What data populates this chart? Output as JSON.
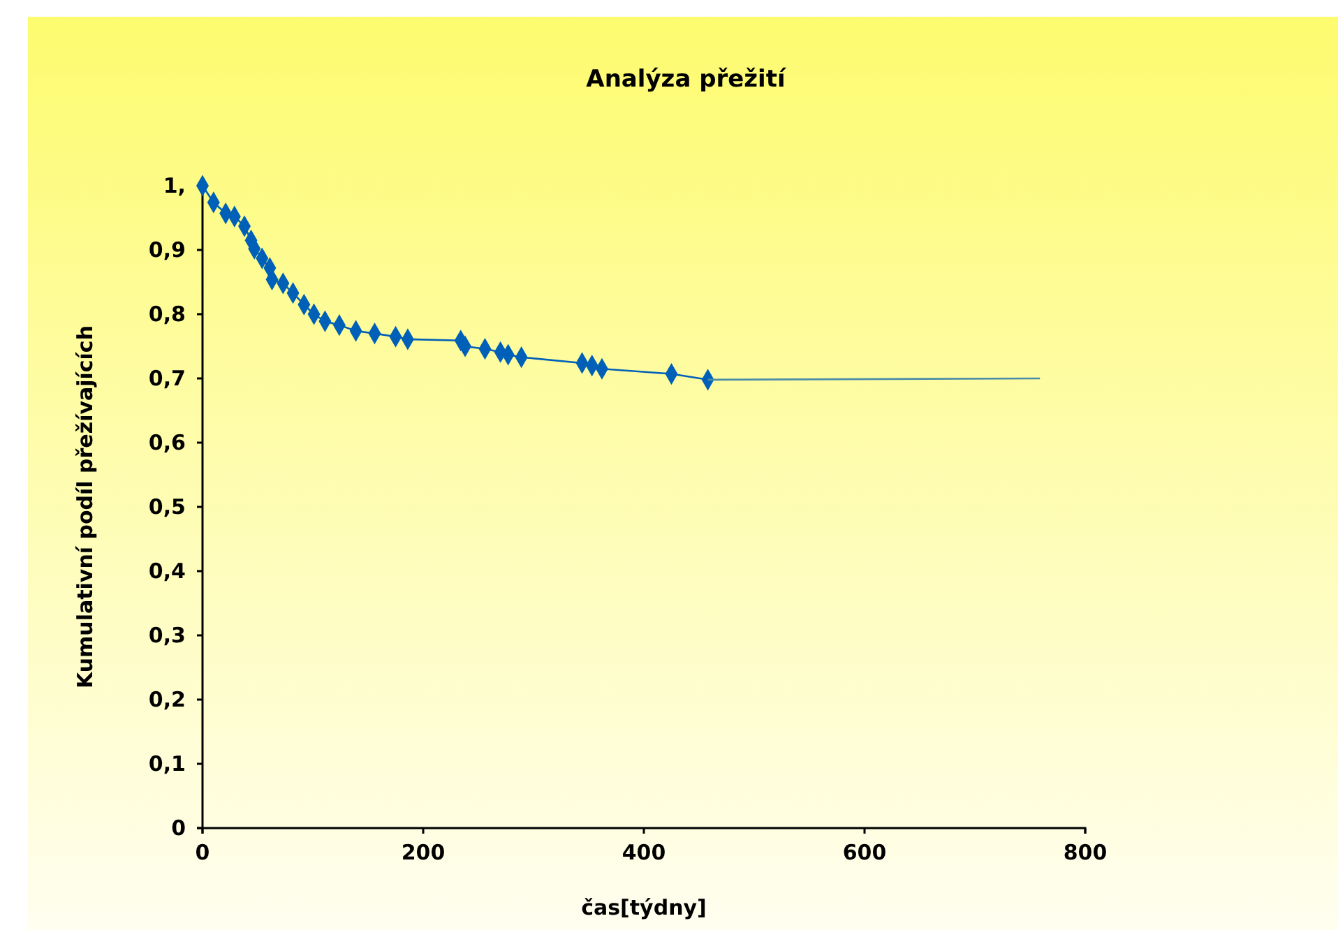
{
  "chart_data": {
    "type": "line",
    "title": "Analýza přežití",
    "xlabel": "čas[týdny]",
    "ylabel": "Kumulativní podíl přežívajících",
    "xlim": [
      0,
      800
    ],
    "xticks": [
      0,
      200,
      400,
      600,
      800
    ],
    "ylim": [
      0,
      1
    ],
    "yticks": [
      {
        "value": 0,
        "label": "0"
      },
      {
        "value": 0.1,
        "label": "0,1"
      },
      {
        "value": 0.2,
        "label": "0,2"
      },
      {
        "value": 0.3,
        "label": "0,3"
      },
      {
        "value": 0.4,
        "label": "0,4"
      },
      {
        "value": 0.5,
        "label": "0,5"
      },
      {
        "value": 0.6,
        "label": "0,6"
      },
      {
        "value": 0.7,
        "label": "0,7"
      },
      {
        "value": 0.8,
        "label": "0,8"
      },
      {
        "value": 0.9,
        "label": "0,9"
      },
      {
        "value": 1,
        "label": "1,"
      }
    ],
    "series": [
      {
        "color": "#0060b8",
        "marker": "diamond",
        "x": [
          0,
          10,
          21,
          29,
          38,
          44,
          47,
          54,
          61,
          63,
          73,
          82,
          92,
          101,
          111,
          124,
          139,
          156,
          175,
          186,
          234,
          238,
          256,
          270,
          277,
          289,
          344,
          353,
          362,
          425,
          458
        ],
        "values": [
          1,
          0.974,
          0.957,
          0.952,
          0.937,
          0.915,
          0.902,
          0.887,
          0.872,
          0.854,
          0.848,
          0.833,
          0.815,
          0.8,
          0.789,
          0.783,
          0.774,
          0.77,
          0.765,
          0.761,
          0.759,
          0.75,
          0.746,
          0.741,
          0.737,
          0.733,
          0.724,
          0.72,
          0.715,
          0.707,
          0.698
        ]
      },
      {
        "color": "#4a8ca8",
        "marker": "none",
        "x": [
          458,
          759
        ],
        "values": [
          0.698,
          0.7
        ]
      }
    ]
  }
}
